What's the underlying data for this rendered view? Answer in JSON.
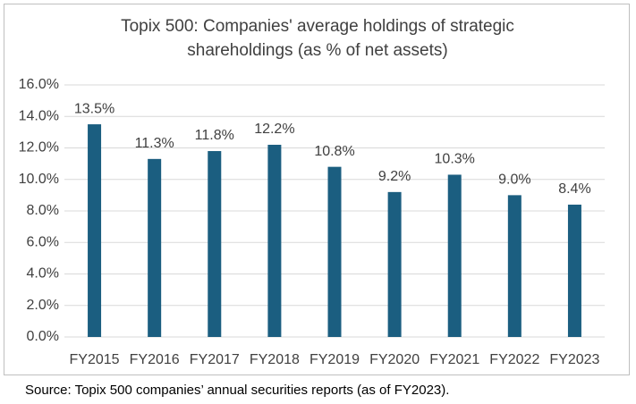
{
  "chart_data": {
    "type": "bar",
    "title": "Topix 500: Companies' average holdings of strategic shareholdings (as % of net assets)",
    "categories": [
      "FY2015",
      "FY2016",
      "FY2017",
      "FY2018",
      "FY2019",
      "FY2020",
      "FY2021",
      "FY2022",
      "FY2023"
    ],
    "values": [
      13.5,
      11.3,
      11.8,
      12.2,
      10.8,
      9.2,
      10.3,
      9.0,
      8.4
    ],
    "value_labels": [
      "13.5%",
      "11.3%",
      "11.8%",
      "12.2%",
      "10.8%",
      "9.2%",
      "10.3%",
      "9.0%",
      "8.4%"
    ],
    "color": "#1b5e80",
    "ylim": [
      0,
      16
    ],
    "yticks": [
      {
        "value": 0,
        "label": "0.0%"
      },
      {
        "value": 2,
        "label": "2.0%"
      },
      {
        "value": 4,
        "label": "4.0%"
      },
      {
        "value": 6,
        "label": "6.0%"
      },
      {
        "value": 8,
        "label": "8.0%"
      },
      {
        "value": 10,
        "label": "10.0%"
      },
      {
        "value": 12,
        "label": "12.0%"
      },
      {
        "value": 14,
        "label": "14.0%"
      },
      {
        "value": 16,
        "label": "16.0%"
      }
    ],
    "grid": true,
    "source": "Source: Topix 500 companies’ annual securities reports (as of FY2023)."
  }
}
